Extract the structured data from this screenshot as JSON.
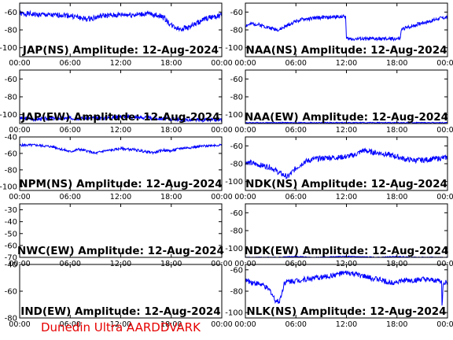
{
  "footer_text": "Dunedin Ultra AARDDVARK",
  "chart_data": [
    {
      "type": "line",
      "title": "JAP(NS) Amplitude: 12-Aug-2024",
      "series_color": "#0000ff",
      "ylim": [
        -110,
        -50
      ],
      "yticks": [
        -60,
        -80,
        -100
      ],
      "x_ticks": [
        "00:00",
        "06:00",
        "12:00",
        "18:00",
        "00:00"
      ],
      "grid": false,
      "x": [
        0,
        1,
        2,
        3,
        4,
        5,
        6,
        7,
        8,
        9,
        10,
        11,
        12,
        13,
        14,
        15,
        16,
        17,
        18,
        19,
        20,
        21,
        22,
        23,
        24
      ],
      "y": [
        -62,
        -62,
        -63,
        -63,
        -64,
        -63,
        -64,
        -66,
        -68,
        -66,
        -64,
        -64,
        -63,
        -63,
        -63,
        -62,
        -63,
        -65,
        -75,
        -79,
        -77,
        -73,
        -68,
        -65,
        -64
      ],
      "noise": 3
    },
    {
      "type": "line",
      "title": "NAA(NS) Amplitude: 12-Aug-2024",
      "series_color": "#0000ff",
      "ylim": [
        -110,
        -50
      ],
      "yticks": [
        -60,
        -80,
        -100
      ],
      "x_ticks": [
        "00:00",
        "06:00",
        "12:00",
        "18:00",
        "00:00"
      ],
      "grid": false,
      "x": [
        0,
        1,
        2,
        3,
        4,
        5,
        6,
        7,
        8,
        9,
        10,
        11,
        11.9,
        12,
        13,
        14,
        15,
        16,
        17,
        18,
        18.4,
        18.5,
        19,
        20,
        21,
        22,
        23,
        24
      ],
      "y": [
        -75,
        -73,
        -75,
        -78,
        -80,
        -75,
        -70,
        -68,
        -67,
        -66,
        -66,
        -65,
        -65,
        -90,
        -90,
        -90,
        -90,
        -90,
        -90,
        -90,
        -90,
        -80,
        -78,
        -75,
        -72,
        -70,
        -67,
        -66
      ],
      "noise": 2
    },
    {
      "type": "line",
      "title": "JAP(EW) Amplitude: 12-Aug-2024",
      "series_color": "#0000ff",
      "ylim": [
        -110,
        -50
      ],
      "yticks": [
        -60,
        -80,
        -100
      ],
      "x_ticks": [
        "00:00",
        "06:00",
        "12:00",
        "18:00",
        "00:00"
      ],
      "grid": false,
      "x": [
        0,
        2,
        4,
        6,
        8,
        10,
        12,
        14,
        16,
        18,
        20,
        22,
        24
      ],
      "y": [
        -104,
        -105,
        -104,
        -104,
        -104,
        -104,
        -102,
        -103,
        -104,
        -105,
        -106,
        -106,
        -106
      ],
      "noise": 2
    },
    {
      "type": "line",
      "title": "NAA(EW) Amplitude: 12-Aug-2024",
      "series_color": "#0000ff",
      "ylim": [
        -110,
        -50
      ],
      "yticks": [
        -60,
        -80,
        -100
      ],
      "x_ticks": [
        "00:00",
        "06:00",
        "12:00",
        "18:00",
        "00:00"
      ],
      "grid": false,
      "x": [
        0,
        6,
        8,
        12,
        16,
        18,
        24
      ],
      "y": [
        -109,
        -109,
        -109,
        -109,
        -109,
        -109,
        -109
      ],
      "noise": 0.5
    },
    {
      "type": "line",
      "title": "NPM(NS) Amplitude: 12-Aug-2024",
      "series_color": "#0000ff",
      "ylim": [
        -105,
        -40
      ],
      "yticks": [
        -40,
        -60,
        -80,
        -100
      ],
      "x_ticks": [
        "00:00",
        "06:00",
        "12:00",
        "18:00",
        "00:00"
      ],
      "grid": false,
      "x": [
        0,
        1,
        2,
        3,
        4,
        5,
        6,
        7,
        8,
        9,
        10,
        11,
        12,
        13,
        14,
        15,
        16,
        17,
        18,
        19,
        20,
        21,
        22,
        23,
        24
      ],
      "y": [
        -50,
        -50,
        -50,
        -51,
        -52,
        -55,
        -58,
        -55,
        -57,
        -60,
        -57,
        -56,
        -54,
        -55,
        -56,
        -58,
        -59,
        -56,
        -57,
        -54,
        -53,
        -52,
        -51,
        -50,
        -50
      ],
      "noise": 1.5
    },
    {
      "type": "line",
      "title": "NDK(NS) Amplitude: 12-Aug-2024",
      "series_color": "#0000ff",
      "ylim": [
        -110,
        -50
      ],
      "yticks": [
        -60,
        -80,
        -100
      ],
      "x_ticks": [
        "00:00",
        "06:00",
        "12:00",
        "18:00",
        "00:00"
      ],
      "grid": false,
      "x": [
        0,
        1,
        2,
        3,
        4,
        5,
        6,
        7,
        8,
        9,
        10,
        11,
        12,
        13,
        14,
        15,
        16,
        17,
        18,
        19,
        20,
        21,
        22,
        23,
        24
      ],
      "y": [
        -78,
        -80,
        -82,
        -84,
        -90,
        -95,
        -85,
        -78,
        -75,
        -74,
        -73,
        -73,
        -72,
        -70,
        -65,
        -67,
        -68,
        -70,
        -72,
        -75,
        -76,
        -76,
        -75,
        -74,
        -73
      ],
      "noise": 3
    },
    {
      "type": "line",
      "title": "NWC(EW) Amplitude: 12-Aug-2024",
      "series_color": "#0000ff",
      "ylim": [
        -70,
        -25
      ],
      "yticks": [
        -30,
        -40,
        -50,
        -60,
        -70
      ],
      "x_ticks": [
        "00:00",
        "06:00",
        "12:00",
        "18:00",
        "00:00"
      ],
      "grid": false,
      "x": [
        0,
        24
      ],
      "y": [
        -70.5,
        -70.5
      ],
      "noise": 0
    },
    {
      "type": "line",
      "title": "NDK(EW) Amplitude: 12-Aug-2024",
      "series_color": "#0000ff",
      "ylim": [
        -110,
        -50
      ],
      "yticks": [
        -60,
        -80,
        -100
      ],
      "x_ticks": [
        "00:00",
        "06:00",
        "12:00",
        "18:00",
        "00:00"
      ],
      "grid": false,
      "x": [
        0,
        4,
        6,
        8,
        12,
        16,
        18,
        20,
        24
      ],
      "y": [
        -110,
        -110,
        -109,
        -110,
        -109,
        -110,
        -109,
        -110,
        -110
      ],
      "noise": 0.5
    },
    {
      "type": "line",
      "title": "IND(EW) Amplitude: 12-Aug-2024",
      "series_color": "#0000ff",
      "ylim": [
        -80,
        -40
      ],
      "yticks": [
        -40,
        -60,
        -80
      ],
      "x_ticks": [
        "00:00",
        "06:00",
        "12:00",
        "18:00",
        "00:00"
      ],
      "grid": false,
      "x": [
        0,
        24
      ],
      "y": [
        -80.5,
        -80.5
      ],
      "noise": 0
    },
    {
      "type": "line",
      "title": "NLK(NS) Amplitude: 12-Aug-2024",
      "series_color": "#0000ff",
      "ylim": [
        -105,
        -55
      ],
      "yticks": [
        -60,
        -80,
        -100
      ],
      "x_ticks": [
        "00:00",
        "06:00",
        "12:00",
        "18:00",
        "00:00"
      ],
      "grid": false,
      "x": [
        0,
        1,
        2,
        3,
        3.5,
        4,
        4.4,
        4.6,
        5,
        6,
        7,
        8,
        9,
        10,
        11,
        12,
        13,
        14,
        15,
        16,
        17,
        18,
        19,
        20,
        21,
        22,
        23,
        23.3,
        23.35,
        23.5,
        24
      ],
      "y": [
        -70,
        -72,
        -74,
        -80,
        -88,
        -90,
        -80,
        -72,
        -71,
        -70,
        -69,
        -68,
        -67,
        -66,
        -64,
        -63,
        -64,
        -66,
        -68,
        -69,
        -72,
        -71,
        -70,
        -70,
        -69,
        -70,
        -70,
        -72,
        -95,
        -72,
        -72
      ],
      "noise": 2.5
    }
  ]
}
